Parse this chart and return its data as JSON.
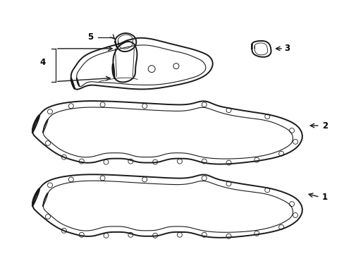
{
  "bg_color": "#ffffff",
  "line_color": "#1a1a1a",
  "lw_outer": 1.4,
  "lw_inner": 0.8,
  "lw_thin": 0.6,
  "fig_width": 4.89,
  "fig_height": 3.6,
  "dpi": 100
}
